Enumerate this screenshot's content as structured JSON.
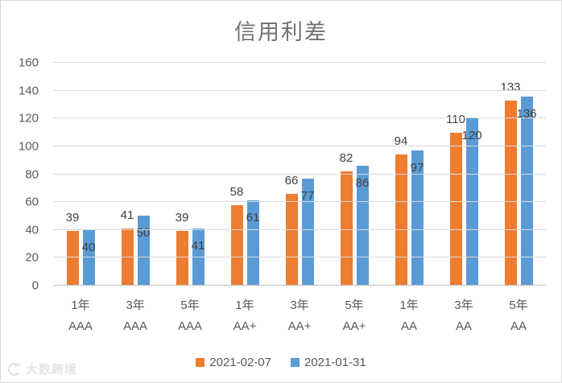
{
  "title": "信用利差",
  "watermark": {
    "text": "大数跨境"
  },
  "colors": {
    "series1": "#ED7D31",
    "series2": "#5B9BD5",
    "gridline": "#D9D9D9",
    "axis_line": "#BFBFBF",
    "tick_text": "#595959",
    "data_label_text": "#404040",
    "title_text": "#737373"
  },
  "chart_data": {
    "type": "bar",
    "title": "信用利差",
    "categories": [
      {
        "line1": "1年",
        "line2": "AAA"
      },
      {
        "line1": "3年",
        "line2": "AAA"
      },
      {
        "line1": "5年",
        "line2": "AAA"
      },
      {
        "line1": "1年",
        "line2": "AA+"
      },
      {
        "line1": "3年",
        "line2": "AA+"
      },
      {
        "line1": "5年",
        "line2": "AA+"
      },
      {
        "line1": "1年",
        "line2": "AA"
      },
      {
        "line1": "3年",
        "line2": "AA"
      },
      {
        "line1": "5年",
        "line2": "AA"
      }
    ],
    "series": [
      {
        "name": "2021-02-07",
        "color": "#ED7D31",
        "label_position": "outside-top",
        "values": [
          39,
          41,
          39,
          58,
          66,
          82,
          94,
          110,
          133
        ]
      },
      {
        "name": "2021-01-31",
        "color": "#5B9BD5",
        "label_position": "inside-top",
        "values": [
          40,
          50,
          41,
          61,
          77,
          86,
          97,
          120,
          136
        ]
      }
    ],
    "xlabel": "",
    "ylabel": "",
    "ylim": [
      0,
      160
    ],
    "yticks": [
      160,
      140,
      120,
      100,
      80,
      60,
      40,
      20,
      0
    ],
    "grid": true,
    "legend_position": "bottom"
  }
}
